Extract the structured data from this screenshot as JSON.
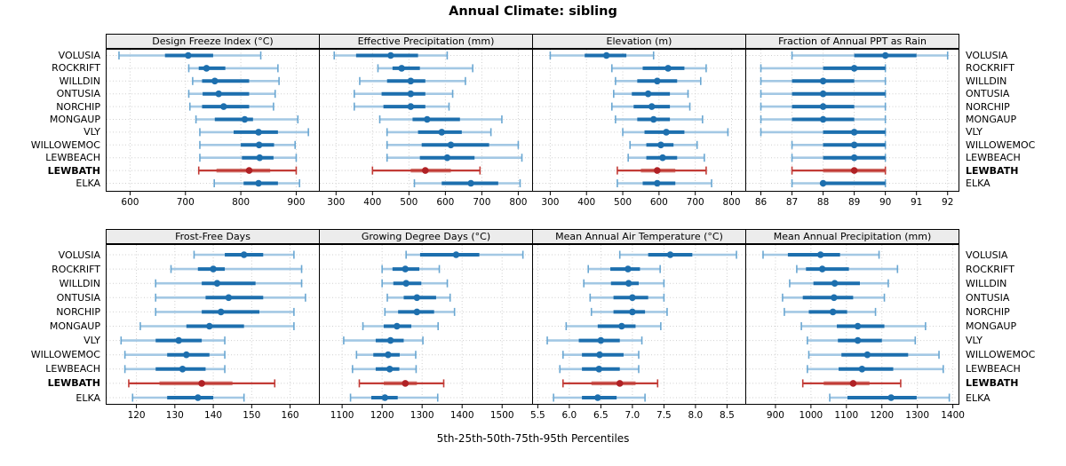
{
  "title": "Annual Climate: sibling",
  "xlabel": "5th-25th-50th-75th-95th Percentiles",
  "percentile_labels": [
    "5th",
    "25th",
    "50th",
    "75th",
    "95th"
  ],
  "stations": [
    "VOLUSIA",
    "ROCKRIFT",
    "WILLDIN",
    "ONTUSIA",
    "NORCHIP",
    "MONGAUP",
    "VLY",
    "WILLOWEMOC",
    "LEWBEACH",
    "LEWBATH",
    "ELKA"
  ],
  "highlight_station": "LEWBATH",
  "colors": {
    "blue_main": "#1d6fae",
    "blue_light": "#a3c8e4",
    "blue_cap": "#6aa7d2",
    "red_main": "#c23b36",
    "red_band": "#d4837c",
    "red_dot": "#b02125",
    "strip_bg": "#ececec",
    "grid": "#cfcfcf",
    "border": "#000000"
  },
  "chart_data": {
    "type": "scatter",
    "variant": "trellis-dotplot-percentile-whiskers",
    "layout": {
      "rows": 2,
      "cols": 4,
      "legend": "none",
      "grid": "dotted"
    },
    "percentiles": [
      5,
      25,
      50,
      75,
      95
    ],
    "station_order_top_to_bottom": [
      "VOLUSIA",
      "ROCKRIFT",
      "WILLDIN",
      "ONTUSIA",
      "NORCHIP",
      "MONGAUP",
      "VLY",
      "WILLOWEMOC",
      "LEWBEACH",
      "LEWBATH",
      "ELKA"
    ],
    "panels": [
      {
        "title": "Design Freeze Index (°C)",
        "xlim": [
          556,
          941
        ],
        "ticks": [
          "600",
          "700",
          "800",
          "900"
        ],
        "values": [
          [
            580,
            663,
            705,
            750,
            836
          ],
          [
            706,
            724,
            738,
            772,
            867
          ],
          [
            713,
            730,
            753,
            815,
            869
          ],
          [
            706,
            731,
            760,
            815,
            862
          ],
          [
            708,
            730,
            769,
            815,
            859
          ],
          [
            719,
            753,
            807,
            822,
            903
          ],
          [
            726,
            787,
            832,
            867,
            922
          ],
          [
            726,
            800,
            833,
            860,
            898
          ],
          [
            726,
            802,
            834,
            859,
            900
          ],
          [
            724,
            756,
            815,
            853,
            900
          ],
          [
            752,
            805,
            832,
            867,
            906
          ]
        ]
      },
      {
        "title": "Effective Precipitation (mm)",
        "xlim": [
          253,
          838
        ],
        "ticks": [
          "300",
          "400",
          "500",
          "600",
          "700",
          "800"
        ],
        "values": [
          [
            295,
            355,
            450,
            525,
            605
          ],
          [
            415,
            455,
            480,
            530,
            675
          ],
          [
            365,
            440,
            505,
            545,
            655
          ],
          [
            350,
            425,
            505,
            545,
            620
          ],
          [
            350,
            430,
            505,
            545,
            610
          ],
          [
            420,
            510,
            550,
            640,
            755
          ],
          [
            440,
            525,
            590,
            645,
            725
          ],
          [
            440,
            535,
            615,
            720,
            800
          ],
          [
            440,
            530,
            605,
            680,
            810
          ],
          [
            400,
            505,
            545,
            615,
            695
          ],
          [
            515,
            590,
            670,
            745,
            805
          ]
        ]
      },
      {
        "title": "Elevation (m)",
        "xlim": [
          250,
          838
        ],
        "ticks": [
          "300",
          "400",
          "500",
          "600",
          "700",
          "800"
        ],
        "values": [
          [
            300,
            395,
            455,
            510,
            585
          ],
          [
            470,
            555,
            625,
            670,
            730
          ],
          [
            480,
            540,
            595,
            650,
            715
          ],
          [
            475,
            525,
            570,
            630,
            680
          ],
          [
            470,
            530,
            580,
            630,
            685
          ],
          [
            480,
            540,
            585,
            630,
            720
          ],
          [
            500,
            560,
            620,
            670,
            790
          ],
          [
            520,
            565,
            605,
            640,
            705
          ],
          [
            515,
            565,
            610,
            650,
            725
          ],
          [
            485,
            550,
            595,
            645,
            730
          ],
          [
            485,
            555,
            595,
            645,
            745
          ]
        ]
      },
      {
        "title": "Fraction of Annual PPT as Rain",
        "xlim": [
          85.5,
          92.35
        ],
        "ticks": [
          "86",
          "87",
          "88",
          "89",
          "90",
          "91",
          "92"
        ],
        "values": [
          [
            87,
            89,
            90,
            91,
            92
          ],
          [
            86,
            88,
            89,
            90,
            90
          ],
          [
            86,
            87,
            88,
            89,
            90
          ],
          [
            86,
            87,
            88,
            90,
            90
          ],
          [
            86,
            87,
            88,
            89,
            90
          ],
          [
            86,
            87,
            88,
            89,
            90
          ],
          [
            86,
            88,
            89,
            90,
            90
          ],
          [
            87,
            88,
            89,
            90,
            90
          ],
          [
            87,
            88,
            89,
            90,
            90
          ],
          [
            87,
            88,
            89,
            90,
            90
          ],
          [
            87,
            88,
            88,
            90,
            90
          ]
        ]
      },
      {
        "title": "Frost-Free Days",
        "xlim": [
          112,
          167.5
        ],
        "ticks": [
          "120",
          "130",
          "140",
          "150",
          "160"
        ],
        "values": [
          [
            135,
            143,
            148,
            153,
            161
          ],
          [
            129,
            136,
            140,
            143,
            163
          ],
          [
            125,
            137,
            141,
            151,
            163
          ],
          [
            125,
            138,
            144,
            153,
            164
          ],
          [
            125,
            137,
            142,
            152,
            161
          ],
          [
            121,
            133,
            139,
            148,
            161
          ],
          [
            116,
            125,
            131,
            137,
            143
          ],
          [
            117,
            128,
            133,
            139,
            143
          ],
          [
            117,
            125,
            132,
            138,
            143
          ],
          [
            118,
            126,
            137,
            145,
            156
          ],
          [
            119,
            128,
            136,
            140,
            148
          ]
        ]
      },
      {
        "title": "Growing Degree Days (°C)",
        "xlim": [
          1042,
          1575
        ],
        "ticks": [
          "1100",
          "1200",
          "1300",
          "1400",
          "1500"
        ],
        "values": [
          [
            1260,
            1295,
            1385,
            1443,
            1552
          ],
          [
            1200,
            1226,
            1258,
            1293,
            1343
          ],
          [
            1200,
            1228,
            1260,
            1298,
            1363
          ],
          [
            1213,
            1254,
            1287,
            1335,
            1370
          ],
          [
            1207,
            1240,
            1287,
            1330,
            1381
          ],
          [
            1152,
            1204,
            1237,
            1273,
            1340
          ],
          [
            1104,
            1184,
            1221,
            1254,
            1302
          ],
          [
            1136,
            1178,
            1215,
            1244,
            1284
          ],
          [
            1126,
            1184,
            1219,
            1243,
            1285
          ],
          [
            1143,
            1204,
            1258,
            1287,
            1354
          ],
          [
            1121,
            1173,
            1207,
            1239,
            1339
          ]
        ]
      },
      {
        "title": "Mean Annual Air Temperature (°C)",
        "xlim": [
          5.41,
          8.79
        ],
        "ticks": [
          "5.5",
          "6.0",
          "6.5",
          "7.0",
          "7.5",
          "8.0",
          "8.5"
        ],
        "values": [
          [
            6.8,
            7.25,
            7.6,
            7.95,
            8.65
          ],
          [
            6.3,
            6.65,
            6.93,
            7.12,
            7.44
          ],
          [
            6.23,
            6.66,
            6.94,
            7.1,
            7.5
          ],
          [
            6.33,
            6.7,
            7.0,
            7.25,
            7.5
          ],
          [
            6.35,
            6.7,
            7.0,
            7.2,
            7.55
          ],
          [
            5.95,
            6.45,
            6.83,
            7.05,
            7.45
          ],
          [
            5.65,
            6.15,
            6.5,
            6.8,
            7.15
          ],
          [
            5.9,
            6.2,
            6.48,
            6.86,
            7.1
          ],
          [
            5.85,
            6.2,
            6.47,
            6.8,
            7.1
          ],
          [
            5.9,
            6.35,
            6.8,
            7.05,
            7.4
          ],
          [
            5.75,
            6.2,
            6.45,
            6.75,
            7.2
          ]
        ]
      },
      {
        "title": "Mean Annual Precipitation (mm)",
        "xlim": [
          815,
          1416
        ],
        "ticks": [
          "900",
          "1000",
          "1100",
          "1200",
          "1300",
          "1400"
        ],
        "values": [
          [
            865,
            935,
            1027,
            1082,
            1192
          ],
          [
            960,
            986,
            1032,
            1107,
            1244
          ],
          [
            940,
            1007,
            1067,
            1138,
            1218
          ],
          [
            920,
            977,
            1065,
            1119,
            1207
          ],
          [
            925,
            994,
            1062,
            1102,
            1182
          ],
          [
            973,
            1073,
            1132,
            1207,
            1323
          ],
          [
            990,
            1076,
            1132,
            1200,
            1294
          ],
          [
            994,
            1086,
            1159,
            1274,
            1361
          ],
          [
            990,
            1078,
            1144,
            1232,
            1373
          ],
          [
            977,
            1036,
            1119,
            1165,
            1253
          ],
          [
            1053,
            1103,
            1226,
            1298,
            1390
          ]
        ]
      }
    ]
  }
}
